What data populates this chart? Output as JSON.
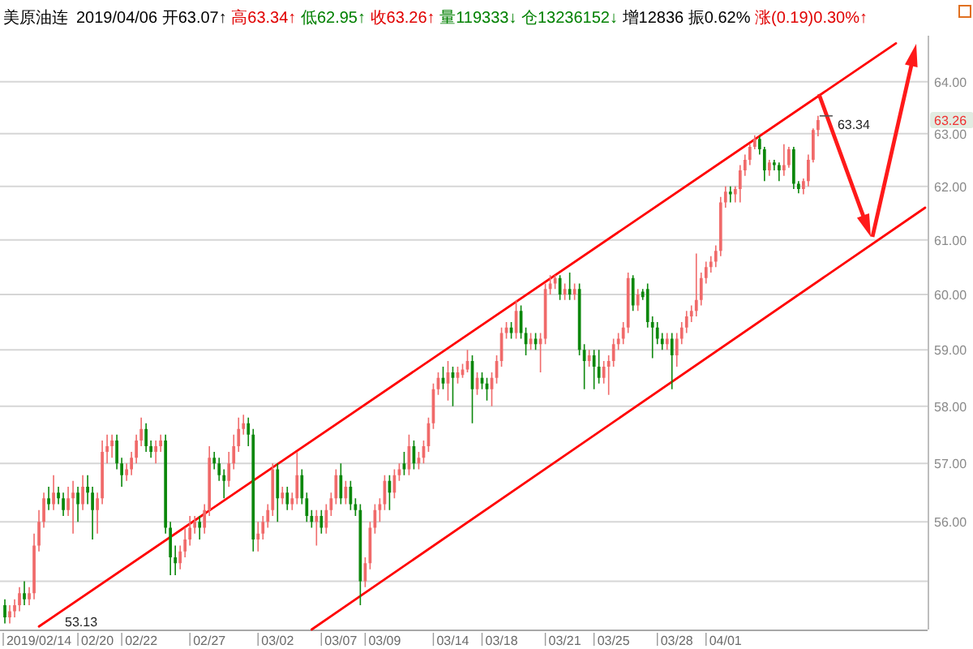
{
  "chart_data": {
    "type": "candlestick",
    "title": "美原油连",
    "subtitle": "2019/04/06 开63.07↑ 高63.34↑ 低62.95↑ 收63.26↑ 量119333↓ 仓13236152↓ 增12836 振0.62% 涨(0.19)0.30%↑",
    "annotations": [
      "63.34",
      "63.26",
      "53.13"
    ],
    "categories": [
      null,
      null,
      null,
      null,
      null,
      null,
      null,
      "2019/02/14",
      null,
      null,
      null,
      null,
      null,
      null,
      null,
      null,
      null,
      null,
      null,
      "02/20",
      null,
      null,
      null,
      null,
      null,
      null,
      null,
      null,
      "02/22",
      null,
      null,
      null,
      null,
      null,
      null,
      null,
      null,
      null,
      null,
      null,
      null,
      null,
      "02/27",
      null,
      null,
      null,
      null,
      null,
      null,
      null,
      null,
      null,
      null,
      null,
      null,
      null,
      "03/02",
      null,
      null,
      null,
      null,
      null,
      null,
      null,
      null,
      null,
      null,
      null,
      null,
      "03/07",
      null,
      null,
      null,
      null,
      null,
      null,
      null,
      null,
      "03/09",
      null,
      null,
      null,
      null,
      null,
      null,
      null,
      null,
      null,
      null,
      null,
      null,
      null,
      "03/14",
      null,
      null,
      null,
      null,
      null,
      null,
      null,
      null,
      null,
      "03/18",
      null,
      null,
      null,
      null,
      null,
      null,
      null,
      null,
      null,
      null,
      null,
      null,
      "03/21",
      null,
      null,
      null,
      null,
      null,
      null,
      null,
      null,
      null,
      "03/25",
      null,
      null,
      null,
      null,
      null,
      null,
      null,
      null,
      null,
      null,
      null,
      null,
      "03/28",
      null,
      null,
      null,
      null,
      null,
      null,
      null,
      null,
      null,
      "04/01",
      null,
      null,
      null,
      null,
      null,
      null,
      null,
      null,
      null,
      null,
      null,
      null,
      null,
      null,
      null,
      null,
      null,
      null,
      null,
      null,
      null,
      null,
      null,
      null,
      null,
      null,
      null,
      null,
      null,
      null,
      null,
      null,
      null,
      null,
      null,
      null,
      null,
      null,
      null,
      null,
      null
    ],
    "ohlc": [
      [
        54.6,
        54.7,
        54.3,
        54.4
      ],
      [
        54.4,
        54.6,
        54.3,
        54.5
      ],
      [
        54.5,
        54.7,
        54.4,
        54.6
      ],
      [
        54.6,
        54.9,
        54.5,
        54.8
      ],
      [
        54.8,
        55.0,
        54.6,
        54.7
      ],
      [
        54.7,
        54.9,
        54.6,
        54.8
      ],
      [
        54.8,
        55.8,
        54.7,
        55.6
      ],
      [
        55.6,
        56.2,
        55.5,
        56.0
      ],
      [
        56.0,
        56.5,
        55.9,
        56.4
      ],
      [
        56.4,
        56.6,
        56.2,
        56.3
      ],
      [
        56.3,
        56.8,
        56.2,
        56.5
      ],
      [
        56.5,
        56.6,
        56.3,
        56.4
      ],
      [
        56.4,
        56.5,
        56.1,
        56.2
      ],
      [
        56.2,
        56.6,
        56.1,
        56.4
      ],
      [
        56.4,
        56.7,
        55.8,
        56.5
      ],
      [
        56.5,
        56.6,
        56.0,
        56.3
      ],
      [
        56.3,
        56.8,
        56.2,
        56.6
      ],
      [
        56.6,
        56.8,
        56.3,
        56.5
      ],
      [
        56.5,
        56.6,
        55.7,
        56.2
      ],
      [
        56.2,
        56.5,
        55.8,
        56.4
      ],
      [
        56.4,
        57.4,
        56.3,
        57.2
      ],
      [
        57.2,
        57.5,
        57.0,
        57.3
      ],
      [
        57.3,
        57.5,
        57.1,
        57.4
      ],
      [
        57.4,
        57.5,
        56.9,
        57.0
      ],
      [
        57.0,
        57.1,
        56.6,
        56.8
      ],
      [
        56.8,
        57.0,
        56.7,
        56.9
      ],
      [
        56.9,
        57.2,
        56.8,
        57.1
      ],
      [
        57.1,
        57.5,
        57.0,
        57.4
      ],
      [
        57.4,
        57.8,
        57.3,
        57.6
      ],
      [
        57.6,
        57.7,
        57.2,
        57.3
      ],
      [
        57.3,
        57.4,
        57.1,
        57.2
      ],
      [
        57.2,
        57.4,
        57.0,
        57.3
      ],
      [
        57.3,
        57.5,
        57.2,
        57.4
      ],
      [
        57.4,
        57.5,
        55.8,
        55.9
      ],
      [
        55.9,
        56.0,
        55.1,
        55.4
      ],
      [
        55.4,
        55.6,
        55.1,
        55.3
      ],
      [
        55.3,
        55.6,
        55.2,
        55.5
      ],
      [
        55.5,
        55.9,
        55.4,
        55.7
      ],
      [
        55.7,
        56.1,
        55.6,
        55.9
      ],
      [
        55.9,
        56.1,
        55.8,
        56.0
      ],
      [
        56.0,
        56.1,
        55.7,
        55.9
      ],
      [
        55.9,
        56.3,
        55.8,
        56.2
      ],
      [
        56.2,
        57.3,
        56.1,
        57.1
      ],
      [
        57.1,
        57.2,
        56.9,
        57.0
      ],
      [
        57.0,
        57.1,
        56.7,
        56.8
      ],
      [
        56.8,
        56.9,
        56.4,
        56.7
      ],
      [
        56.7,
        57.2,
        56.6,
        57.0
      ],
      [
        57.0,
        57.5,
        56.9,
        57.3
      ],
      [
        57.3,
        57.8,
        57.2,
        57.6
      ],
      [
        57.6,
        57.85,
        57.5,
        57.7
      ],
      [
        57.7,
        57.8,
        57.3,
        57.5
      ],
      [
        57.5,
        57.6,
        55.5,
        55.7
      ],
      [
        55.7,
        56.0,
        55.5,
        55.8
      ],
      [
        55.8,
        56.1,
        55.7,
        56.0
      ],
      [
        56.0,
        56.3,
        55.9,
        56.2
      ],
      [
        56.2,
        57.0,
        56.1,
        56.9
      ],
      [
        56.9,
        57.0,
        56.0,
        56.4
      ],
      [
        56.4,
        56.6,
        56.3,
        56.5
      ],
      [
        56.5,
        56.6,
        56.2,
        56.3
      ],
      [
        56.3,
        56.5,
        56.2,
        56.4
      ],
      [
        56.4,
        57.2,
        56.3,
        56.8
      ],
      [
        56.8,
        56.9,
        56.3,
        56.4
      ],
      [
        56.4,
        56.5,
        56.0,
        56.1
      ],
      [
        56.1,
        56.2,
        55.9,
        56.0
      ],
      [
        56.0,
        56.2,
        55.6,
        56.1
      ],
      [
        56.1,
        56.2,
        55.8,
        55.9
      ],
      [
        55.9,
        56.3,
        55.8,
        56.2
      ],
      [
        56.2,
        56.5,
        56.1,
        56.4
      ],
      [
        56.4,
        56.9,
        56.3,
        56.8
      ],
      [
        56.8,
        57.0,
        56.3,
        56.4
      ],
      [
        56.4,
        56.7,
        56.3,
        56.6
      ],
      [
        56.6,
        56.7,
        56.2,
        56.3
      ],
      [
        56.3,
        56.4,
        56.1,
        56.2
      ],
      [
        56.2,
        56.3,
        54.6,
        55.0
      ],
      [
        55.0,
        55.4,
        54.9,
        55.3
      ],
      [
        55.3,
        56.0,
        55.2,
        55.9
      ],
      [
        55.9,
        56.3,
        55.8,
        56.2
      ],
      [
        56.2,
        56.4,
        56.0,
        56.3
      ],
      [
        56.3,
        56.8,
        56.2,
        56.7
      ],
      [
        56.7,
        56.8,
        56.2,
        56.5
      ],
      [
        56.5,
        56.9,
        56.4,
        56.8
      ],
      [
        56.8,
        57.0,
        56.7,
        56.9
      ],
      [
        57.0,
        57.2,
        56.8,
        56.9
      ],
      [
        56.9,
        57.5,
        56.8,
        57.3
      ],
      [
        57.3,
        57.4,
        56.9,
        57.0
      ],
      [
        57.0,
        57.2,
        56.9,
        57.1
      ],
      [
        57.1,
        57.4,
        57.0,
        57.3
      ],
      [
        57.3,
        57.8,
        57.2,
        57.7
      ],
      [
        57.7,
        58.4,
        57.6,
        58.3
      ],
      [
        58.3,
        58.6,
        58.2,
        58.5
      ],
      [
        58.5,
        58.7,
        58.3,
        58.4
      ],
      [
        58.4,
        58.8,
        58.1,
        58.6
      ],
      [
        58.6,
        58.7,
        58.0,
        58.5
      ],
      [
        58.5,
        58.7,
        58.4,
        58.6
      ],
      [
        58.55,
        58.75,
        58.5,
        58.65
      ],
      [
        58.65,
        59.0,
        58.6,
        58.8
      ],
      [
        58.8,
        58.9,
        57.7,
        58.3
      ],
      [
        58.3,
        58.6,
        58.2,
        58.5
      ],
      [
        58.5,
        58.6,
        58.3,
        58.4
      ],
      [
        58.4,
        58.5,
        58.1,
        58.3
      ],
      [
        58.3,
        58.6,
        58.0,
        58.5
      ],
      [
        58.5,
        58.9,
        58.4,
        58.8
      ],
      [
        58.8,
        59.4,
        58.7,
        59.3
      ],
      [
        59.3,
        59.5,
        59.2,
        59.4
      ],
      [
        59.4,
        59.5,
        59.2,
        59.3
      ],
      [
        59.3,
        59.9,
        59.2,
        59.7
      ],
      [
        59.7,
        59.8,
        59.2,
        59.3
      ],
      [
        59.3,
        59.4,
        58.9,
        59.1
      ],
      [
        59.1,
        59.3,
        59.0,
        59.2
      ],
      [
        59.2,
        59.3,
        59.0,
        59.1
      ],
      [
        59.1,
        59.3,
        58.6,
        59.2
      ],
      [
        59.2,
        60.2,
        59.1,
        60.1
      ],
      [
        60.1,
        60.35,
        60.0,
        60.2
      ],
      [
        60.2,
        60.35,
        60.1,
        60.3
      ],
      [
        60.3,
        60.35,
        59.9,
        60.0
      ],
      [
        60.0,
        60.2,
        59.9,
        60.1
      ],
      [
        60.1,
        60.4,
        59.9,
        60.0
      ],
      [
        60.0,
        60.2,
        59.9,
        60.1
      ],
      [
        60.1,
        60.2,
        58.9,
        59.0
      ],
      [
        59.0,
        59.1,
        58.3,
        58.8
      ],
      [
        58.8,
        59.0,
        58.7,
        58.9
      ],
      [
        58.9,
        59.0,
        58.3,
        58.7
      ],
      [
        58.7,
        59.0,
        58.4,
        58.5
      ],
      [
        58.5,
        58.8,
        58.4,
        58.7
      ],
      [
        58.7,
        58.9,
        58.2,
        58.8
      ],
      [
        58.8,
        59.2,
        58.7,
        59.1
      ],
      [
        59.1,
        59.3,
        59.0,
        59.2
      ],
      [
        59.2,
        59.5,
        59.1,
        59.4
      ],
      [
        59.4,
        60.4,
        59.3,
        60.3
      ],
      [
        60.3,
        60.35,
        59.7,
        59.8
      ],
      [
        59.8,
        60.1,
        59.7,
        60.0
      ],
      [
        60.05,
        60.1,
        59.9,
        59.95
      ],
      [
        60.1,
        60.2,
        59.4,
        59.5
      ],
      [
        59.5,
        59.6,
        58.85,
        59.4
      ],
      [
        59.4,
        59.5,
        59.1,
        59.2
      ],
      [
        59.2,
        59.3,
        59.0,
        59.1
      ],
      [
        59.1,
        59.3,
        59.0,
        59.2
      ],
      [
        59.2,
        59.3,
        58.3,
        58.9
      ],
      [
        58.9,
        59.3,
        58.7,
        59.2
      ],
      [
        59.2,
        59.5,
        59.1,
        59.4
      ],
      [
        59.4,
        59.7,
        59.3,
        59.6
      ],
      [
        59.6,
        59.8,
        59.5,
        59.7
      ],
      [
        59.7,
        60.75,
        59.6,
        59.9
      ],
      [
        59.9,
        60.4,
        59.8,
        60.3
      ],
      [
        60.3,
        60.6,
        60.2,
        60.5
      ],
      [
        60.5,
        60.7,
        60.4,
        60.6
      ],
      [
        60.6,
        60.9,
        60.5,
        60.8
      ],
      [
        60.8,
        61.8,
        60.7,
        61.7
      ],
      [
        61.7,
        62.0,
        61.6,
        61.9
      ],
      [
        61.9,
        62.0,
        61.7,
        61.85
      ],
      [
        61.85,
        62.0,
        61.7,
        61.95
      ],
      [
        61.95,
        62.4,
        61.7,
        62.3
      ],
      [
        62.3,
        62.6,
        62.2,
        62.5
      ],
      [
        62.5,
        62.8,
        62.4,
        62.75
      ],
      [
        62.75,
        62.97,
        62.7,
        62.9
      ],
      [
        62.9,
        62.95,
        62.6,
        62.7
      ],
      [
        62.7,
        62.75,
        62.1,
        62.3
      ],
      [
        62.3,
        62.5,
        62.2,
        62.45
      ],
      [
        62.45,
        62.5,
        62.3,
        62.4
      ],
      [
        62.4,
        62.45,
        62.1,
        62.3
      ],
      [
        62.3,
        62.8,
        62.2,
        62.4
      ],
      [
        62.4,
        62.75,
        62.35,
        62.7
      ],
      [
        62.7,
        62.75,
        61.95,
        62.05
      ],
      [
        62.05,
        62.1,
        61.87,
        61.95
      ],
      [
        61.95,
        62.15,
        61.85,
        62.1
      ],
      [
        62.1,
        62.6,
        62.0,
        62.5
      ],
      [
        62.5,
        63.1,
        62.45,
        63.07
      ],
      [
        63.07,
        63.34,
        62.95,
        63.26
      ],
      null,
      null,
      null,
      null,
      null,
      null,
      null,
      null,
      null,
      null,
      null,
      null,
      null,
      null,
      null,
      null,
      null,
      null,
      null,
      null,
      null,
      null
    ],
    "series": [
      {
        "type": "line",
        "color": "#ff0000",
        "values": [
          null,
          null,
          null,
          null,
          null,
          null,
          null,
          54.25,
          null,
          null,
          null,
          null,
          null,
          null,
          null,
          null,
          null,
          null,
          null,
          null,
          null,
          null,
          null,
          null,
          null,
          null,
          null,
          null,
          null,
          null,
          null,
          null,
          null,
          null,
          null,
          null,
          null,
          null,
          null,
          null,
          null,
          null,
          null,
          null,
          null,
          null,
          null,
          null,
          null,
          null,
          null,
          null,
          null,
          null,
          null,
          null,
          null,
          null,
          null,
          null,
          null,
          null,
          null,
          null,
          null,
          null,
          null,
          null,
          null,
          null,
          null,
          null,
          null,
          null,
          null,
          null,
          null,
          null,
          null,
          null,
          null,
          null,
          null,
          null,
          null,
          null,
          null,
          null,
          null,
          null,
          null,
          null,
          null,
          null,
          null,
          null,
          null,
          null,
          null,
          null,
          null,
          null,
          null,
          null,
          null,
          null,
          null,
          null,
          null,
          null,
          null,
          null,
          null,
          null,
          null,
          null,
          null,
          null,
          null,
          null,
          null,
          null,
          null,
          null,
          null,
          null,
          null,
          null,
          null,
          null,
          null,
          null,
          null,
          null,
          null,
          null,
          null,
          null,
          null,
          null,
          null,
          null,
          null,
          null,
          null,
          null,
          null,
          null,
          null,
          null,
          null,
          null,
          null,
          null,
          null,
          null,
          null,
          null,
          null,
          null,
          null,
          null,
          null,
          null,
          null,
          null,
          null,
          null,
          null,
          null,
          null,
          null,
          null,
          null,
          null,
          null,
          null,
          null,
          null,
          null,
          null,
          null,
          null,
          64.75,
          null,
          null,
          null,
          null,
          null,
          null
        ]
      },
      {
        "type": "line",
        "color": "#ff0000",
        "values": [
          null,
          null,
          null,
          null,
          null,
          null,
          null,
          null,
          null,
          null,
          null,
          null,
          null,
          null,
          null,
          null,
          null,
          null,
          null,
          null,
          null,
          null,
          null,
          null,
          null,
          null,
          null,
          null,
          null,
          null,
          null,
          null,
          null,
          null,
          null,
          null,
          null,
          null,
          null,
          null,
          null,
          null,
          null,
          null,
          null,
          null,
          null,
          null,
          null,
          null,
          null,
          null,
          null,
          null,
          null,
          null,
          null,
          null,
          null,
          null,
          null,
          null,
          null,
          54.2,
          null,
          null,
          null,
          null,
          null,
          null,
          null,
          null,
          null,
          null,
          null,
          null,
          null,
          null,
          null,
          null,
          null,
          null,
          null,
          null,
          null,
          null,
          null,
          null,
          null,
          null,
          null,
          null,
          null,
          null,
          null,
          null,
          null,
          null,
          null,
          null,
          null,
          null,
          null,
          null,
          null,
          null,
          null,
          null,
          null,
          null,
          null,
          null,
          null,
          null,
          null,
          null,
          null,
          null,
          null,
          null,
          null,
          null,
          null,
          null,
          null,
          null,
          null,
          null,
          null,
          null,
          null,
          null,
          null,
          null,
          null,
          null,
          null,
          null,
          null,
          null,
          null,
          null,
          null,
          null,
          null,
          null,
          null,
          null,
          null,
          null,
          null,
          null,
          null,
          null,
          null,
          null,
          null,
          null,
          null,
          null,
          null,
          null,
          null,
          null,
          null,
          null,
          null,
          null,
          null,
          null,
          null,
          null,
          null,
          null,
          null,
          null,
          null,
          null,
          null,
          null,
          null,
          null,
          null,
          null,
          null,
          null,
          null,
          null,
          null,
          61.6
        ]
      }
    ],
    "ylim": [
      54.2,
      64.9
    ],
    "yticks": [
      {
        "value": 55,
        "label": null
      },
      {
        "value": 56,
        "label": "56.00"
      },
      {
        "value": 57,
        "label": "57.00"
      },
      {
        "value": 58,
        "label": "58.00"
      },
      {
        "value": 59,
        "label": "59.00"
      },
      {
        "value": 60,
        "label": "60.00"
      },
      {
        "value": 61,
        "label": "61.00"
      },
      {
        "value": 62,
        "label": "62.00"
      },
      {
        "value": 63,
        "label": "63.00"
      },
      {
        "value": 64,
        "label": "64.00"
      }
    ],
    "log": true,
    "grid": "y"
  }
}
